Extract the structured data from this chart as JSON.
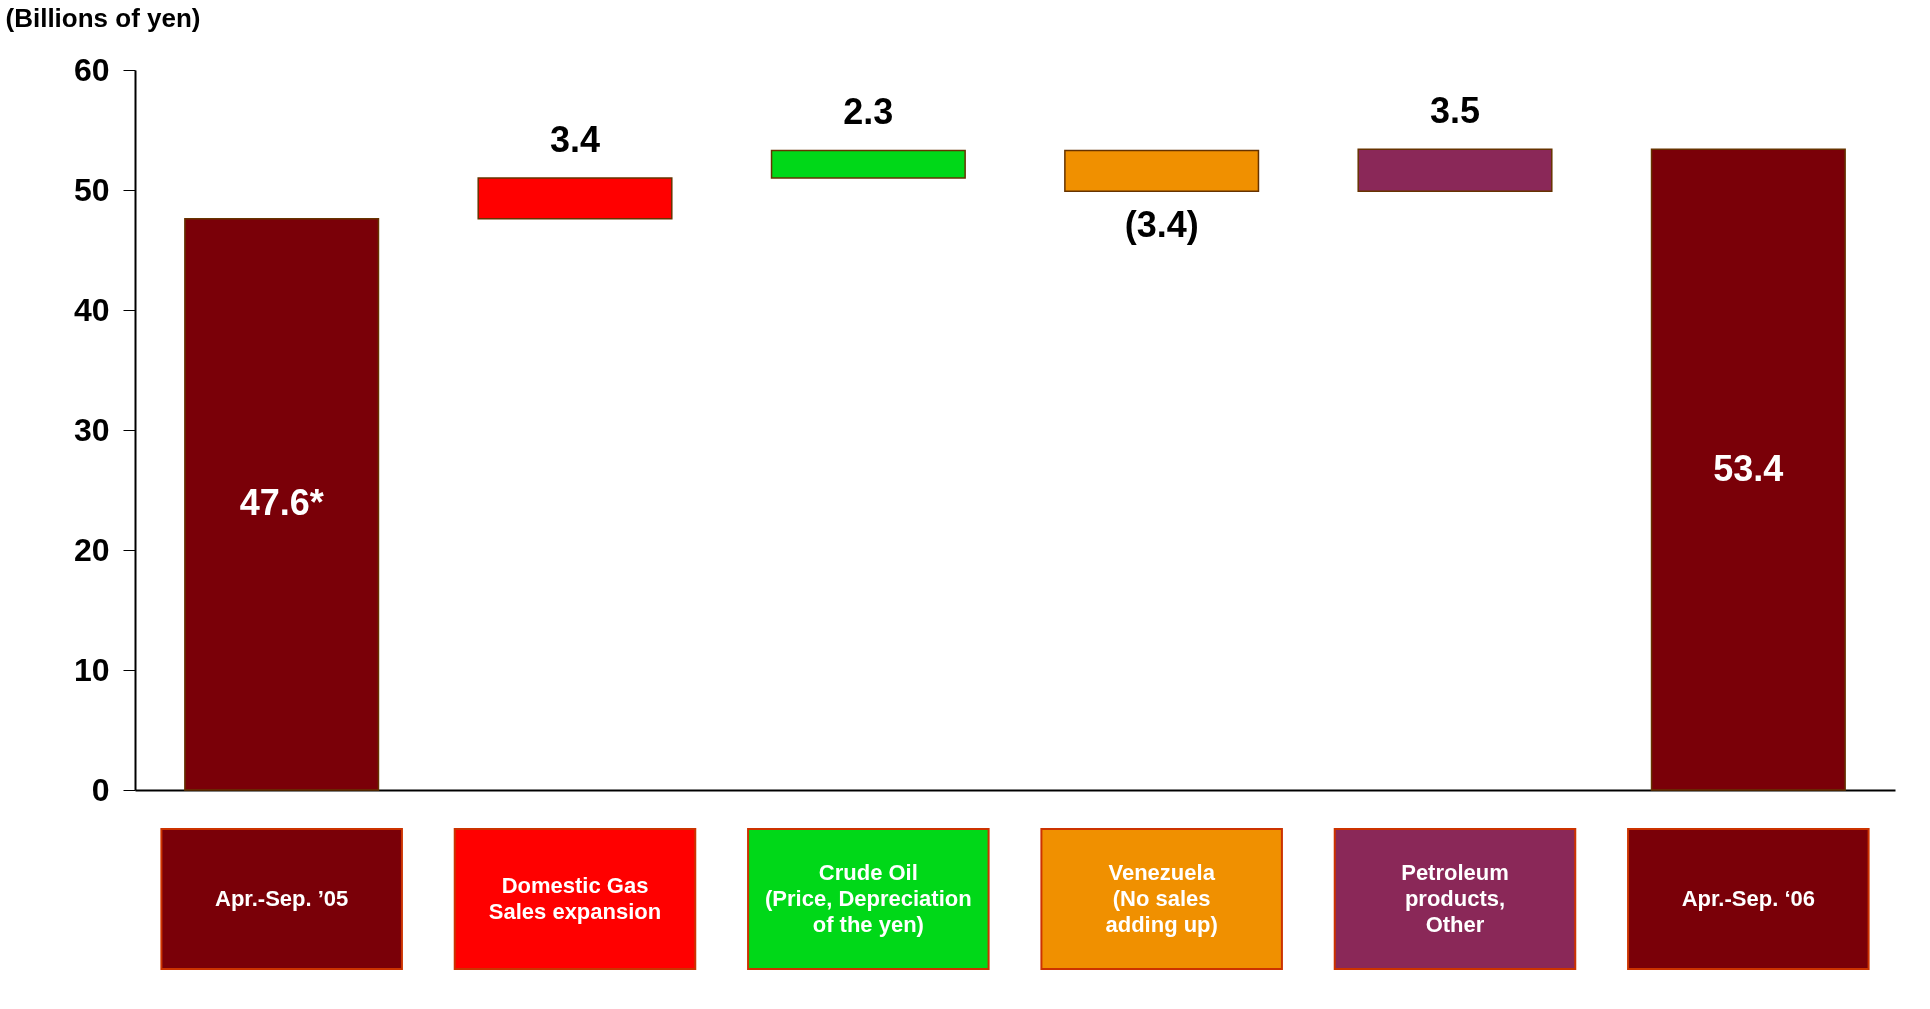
{
  "chart_data": {
    "type": "bar",
    "ylabel": "(Billions of yen)",
    "categories": [
      "Apr.-Sep. ’05",
      "Domestic Gas\nSales expansion",
      "Crude Oil\n(Price, Depreciation\nof the yen)",
      "Venezuela\n(No sales\nadding up)",
      "Petroleum\nproducts,\nOther",
      "Apr.-Sep. ‘06"
    ],
    "values": [
      47.6,
      3.4,
      2.3,
      -3.4,
      3.5,
      53.4
    ],
    "base": [
      0,
      47.6,
      51.0,
      53.3,
      49.9,
      0
    ],
    "value_labels": [
      "47.6*",
      "3.4",
      "2.3",
      "(3.4)",
      "3.5",
      "53.4"
    ],
    "colors": [
      "#7a0008",
      "#ff0000",
      "#00d818",
      "#f09000",
      "#8a2858",
      "#7a0008"
    ],
    "ylim": [
      0,
      60
    ],
    "yticks": [
      0,
      10,
      20,
      30,
      40,
      50,
      60
    ]
  }
}
